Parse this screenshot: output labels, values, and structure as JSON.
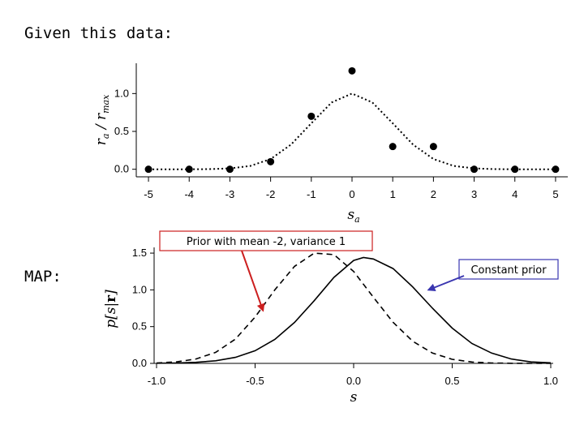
{
  "heading": "Given this data:",
  "map_label": "MAP:",
  "chart_data": [
    {
      "type": "scatter",
      "xlabel": "s_a",
      "ylabel": "r_a / r_max",
      "xlim": [
        -5.3,
        5.3
      ],
      "ylim": [
        -0.1,
        1.4
      ],
      "xticks": [
        -5,
        -4,
        -3,
        -2,
        -1,
        0,
        1,
        2,
        3,
        4,
        5
      ],
      "yticks": [
        0.0,
        0.5,
        1.0
      ],
      "ytick_labels": [
        "0.0",
        "0.5",
        "1.0"
      ],
      "grid": false,
      "series": [
        {
          "style": "points",
          "x": [
            -5,
            -4,
            -3,
            -2,
            -1,
            0,
            1,
            2,
            3,
            4,
            5
          ],
          "y": [
            0.0,
            0.0,
            0.0,
            0.1,
            0.7,
            1.3,
            0.3,
            0.3,
            0.0,
            0.0,
            0.0
          ]
        },
        {
          "style": "dotted-curve",
          "x": [
            -5,
            -4.5,
            -4,
            -3.5,
            -3,
            -2.5,
            -2,
            -1.5,
            -1,
            -0.5,
            0,
            0.5,
            1,
            1.5,
            2,
            2.5,
            3,
            3.5,
            4,
            4.5,
            5
          ],
          "y": [
            0.0,
            0.0,
            0.0,
            0.002,
            0.011,
            0.044,
            0.135,
            0.325,
            0.607,
            0.882,
            1.0,
            0.882,
            0.607,
            0.325,
            0.135,
            0.044,
            0.011,
            0.002,
            0.0,
            0.0,
            0.0
          ]
        }
      ]
    },
    {
      "type": "line",
      "xlabel": "s",
      "ylabel": "p[s|r]",
      "xlim": [
        -1.0,
        1.0
      ],
      "ylim": [
        0.0,
        1.6
      ],
      "xticks": [
        -1.0,
        -0.5,
        0.0,
        0.5,
        1.0
      ],
      "xtick_labels": [
        "-1.0",
        "-0.5",
        "0.0",
        "0.5",
        "1.0"
      ],
      "yticks": [
        0.0,
        0.5,
        1.0,
        1.5
      ],
      "ytick_labels": [
        "0.0",
        "0.5",
        "1.0",
        "1.5"
      ],
      "grid": false,
      "series": [
        {
          "style": "solid",
          "x": [
            -1.0,
            -0.9,
            -0.8,
            -0.7,
            -0.6,
            -0.5,
            -0.4,
            -0.3,
            -0.2,
            -0.1,
            0.0,
            0.05,
            0.1,
            0.2,
            0.3,
            0.4,
            0.5,
            0.6,
            0.7,
            0.8,
            0.9,
            1.0
          ],
          "y": [
            0.002,
            0.005,
            0.014,
            0.035,
            0.082,
            0.172,
            0.326,
            0.557,
            0.853,
            1.17,
            1.4,
            1.44,
            1.42,
            1.29,
            1.04,
            0.75,
            0.48,
            0.27,
            0.14,
            0.06,
            0.02,
            0.008
          ]
        },
        {
          "style": "dashed",
          "x": [
            -1.0,
            -0.9,
            -0.8,
            -0.7,
            -0.6,
            -0.5,
            -0.4,
            -0.3,
            -0.2,
            -0.1,
            0.0,
            0.1,
            0.2,
            0.3,
            0.4,
            0.5,
            0.6,
            0.7,
            0.8,
            0.9,
            1.0
          ],
          "y": [
            0.006,
            0.02,
            0.06,
            0.15,
            0.33,
            0.63,
            1.0,
            1.32,
            1.5,
            1.48,
            1.25,
            0.9,
            0.56,
            0.3,
            0.14,
            0.055,
            0.019,
            0.005,
            0.001,
            0.0,
            0.0
          ]
        }
      ],
      "annotations": [
        {
          "text": "Prior with mean -2, variance 1",
          "arrow_to": [
            -0.46,
            0.72
          ],
          "color": "#cc1f1f"
        },
        {
          "text": "Constant prior",
          "arrow_to": [
            0.38,
            1.0
          ],
          "color": "#3a36b0"
        }
      ]
    }
  ]
}
